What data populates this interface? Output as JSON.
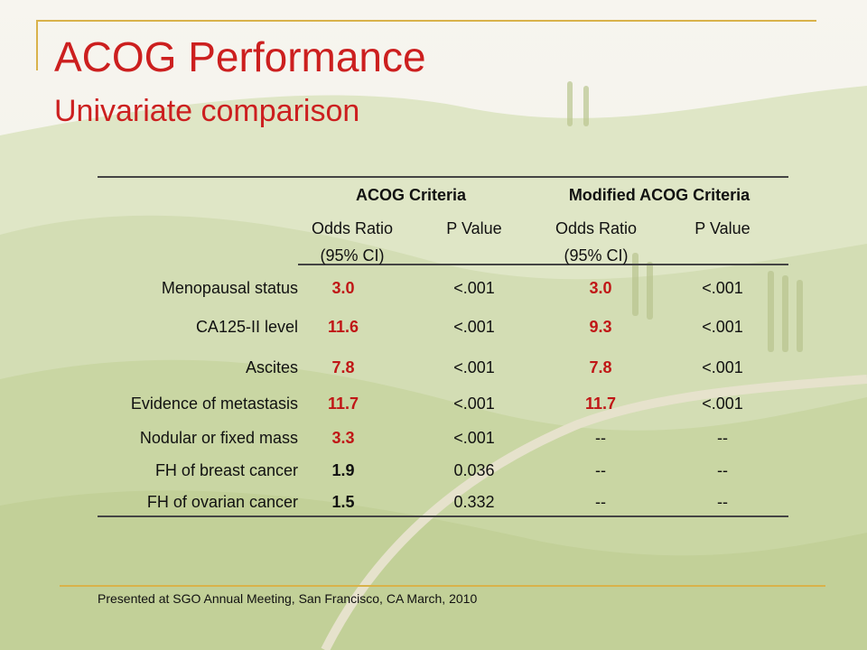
{
  "slide": {
    "title": "ACOG Performance",
    "subtitle": "Univariate comparison",
    "footer": "Presented at SGO Annual Meeting, San Francisco, CA March, 2010"
  },
  "table": {
    "groups": [
      "ACOG Criteria",
      "Modified ACOG Criteria"
    ],
    "sub_headers": [
      "Odds Ratio\n(95% CI)",
      "P Value",
      "Odds Ratio\n(95% CI)",
      "P Value"
    ],
    "rows": [
      {
        "label": "Menopausal status",
        "acog_or": "3.0",
        "acog_p": "<.001",
        "mod_or": "3.0",
        "mod_p": "<.001"
      },
      {
        "label": "CA125-II level",
        "acog_or": "11.6",
        "acog_p": "<.001",
        "mod_or": "9.3",
        "mod_p": "<.001"
      },
      {
        "label": "Ascites",
        "acog_or": "7.8",
        "acog_p": "<.001",
        "mod_or": "7.8",
        "mod_p": "<.001"
      },
      {
        "label": "Evidence of metastasis",
        "acog_or": "11.7",
        "acog_p": "<.001",
        "mod_or": "11.7",
        "mod_p": "<.001"
      },
      {
        "label": "Nodular or fixed mass",
        "acog_or": "3.3",
        "acog_p": "<.001",
        "mod_or": "--",
        "mod_p": "--"
      },
      {
        "label": "FH of breast cancer",
        "acog_or": "1.9",
        "acog_p": "0.036",
        "mod_or": "--",
        "mod_p": "--"
      },
      {
        "label": "FH of ovarian cancer",
        "acog_or": "1.5",
        "acog_p": "0.332",
        "mod_or": "--",
        "mod_p": "--"
      }
    ]
  },
  "colors": {
    "accent": "#cc1f1f",
    "frame": "#d9b24a",
    "significant": "#c01616"
  }
}
